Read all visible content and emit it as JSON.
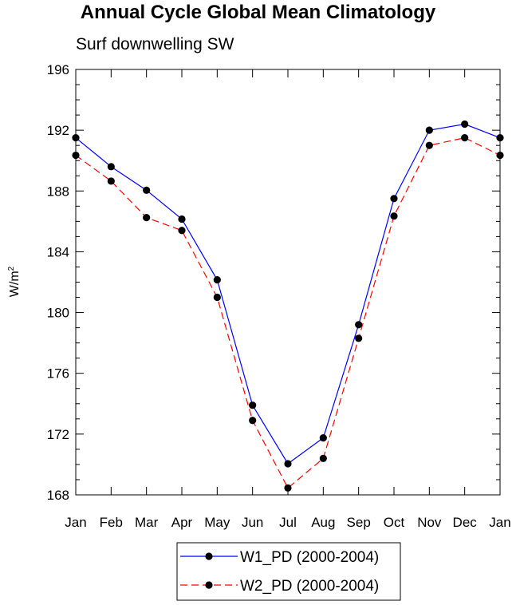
{
  "chart_data": {
    "type": "line",
    "title": "Annual Cycle Global Mean Climatology",
    "subtitle": "Surf downwelling SW",
    "xlabel": "",
    "ylabel": "W/m",
    "ylabel_superscript": "2",
    "ylim": [
      168,
      196
    ],
    "yticks": [
      168,
      172,
      176,
      180,
      184,
      188,
      192,
      196
    ],
    "ytick_labels": [
      "168",
      "172",
      "176",
      "180",
      "184",
      "188",
      "192",
      "196"
    ],
    "categories": [
      "Jan",
      "Feb",
      "Mar",
      "Apr",
      "May",
      "Jun",
      "Jul",
      "Aug",
      "Sep",
      "Oct",
      "Nov",
      "Dec",
      "Jan"
    ],
    "series": [
      {
        "name": "W1_PD (2000-2004)",
        "color": "#0000ff",
        "line_style": "solid",
        "marker": "filled-circle",
        "values": [
          191.5,
          189.6,
          188.05,
          186.15,
          182.15,
          173.9,
          170.05,
          171.75,
          179.2,
          187.5,
          192.0,
          192.4,
          191.5
        ]
      },
      {
        "name": "W2_PD (2000-2004)",
        "color": "#ff0000",
        "line_style": "dashed",
        "marker": "filled-circle",
        "values": [
          190.35,
          188.65,
          186.25,
          185.4,
          181.0,
          172.9,
          168.45,
          170.4,
          178.3,
          186.35,
          191.0,
          191.5,
          190.35
        ]
      }
    ],
    "legend_position": "bottom-center",
    "grid": false
  }
}
